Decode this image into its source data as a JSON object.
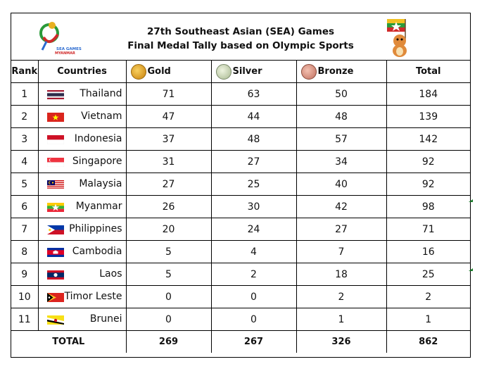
{
  "title_line1": "27th Southeast Asian (SEA) Games",
  "title_line2": "Final Medal Tally based on Olympic Sports",
  "logo_text": "27th SEA GAMES MYANMAR 2013",
  "headers": {
    "rank": "Rank",
    "countries": "Countries",
    "gold": "Gold",
    "silver": "Silver",
    "bronze": "Bronze",
    "total": "Total"
  },
  "colors": {
    "gold": "#e0a020",
    "silver": "#b8c8a0",
    "bronze": "#d08a80"
  },
  "rows": [
    {
      "rank": "1",
      "country": "Thailand",
      "flag": "thailand-flag",
      "gold": "71",
      "silver": "63",
      "bronze": "50",
      "total": "184"
    },
    {
      "rank": "2",
      "country": "Vietnam",
      "flag": "vietnam-flag",
      "gold": "47",
      "silver": "44",
      "bronze": "48",
      "total": "139"
    },
    {
      "rank": "3",
      "country": "Indonesia",
      "flag": "indonesia-flag",
      "gold": "37",
      "silver": "48",
      "bronze": "57",
      "total": "142"
    },
    {
      "rank": "4",
      "country": "Singapore",
      "flag": "singapore-flag",
      "gold": "31",
      "silver": "27",
      "bronze": "34",
      "total": "92"
    },
    {
      "rank": "5",
      "country": "Malaysia",
      "flag": "malaysia-flag",
      "gold": "27",
      "silver": "25",
      "bronze": "40",
      "total": "92"
    },
    {
      "rank": "6",
      "country": "Myanmar",
      "flag": "myanmar-flag",
      "gold": "26",
      "silver": "30",
      "bronze": "42",
      "total": "98"
    },
    {
      "rank": "7",
      "country": "Philippines",
      "flag": "philippines-flag",
      "gold": "20",
      "silver": "24",
      "bronze": "27",
      "total": "71"
    },
    {
      "rank": "8",
      "country": "Cambodia",
      "flag": "cambodia-flag",
      "gold": "5",
      "silver": "4",
      "bronze": "7",
      "total": "16"
    },
    {
      "rank": "9",
      "country": "Laos",
      "flag": "laos-flag",
      "gold": "5",
      "silver": "2",
      "bronze": "18",
      "total": "25"
    },
    {
      "rank": "10",
      "country": "Timor Leste",
      "flag": "timor-leste-flag",
      "gold": "0",
      "silver": "0",
      "bronze": "2",
      "total": "2"
    },
    {
      "rank": "11",
      "country": "Brunei",
      "flag": "brunei-flag",
      "gold": "0",
      "silver": "0",
      "bronze": "1",
      "total": "1"
    }
  ],
  "totals": {
    "label": "TOTAL",
    "gold": "269",
    "silver": "267",
    "bronze": "326",
    "total": "862"
  }
}
